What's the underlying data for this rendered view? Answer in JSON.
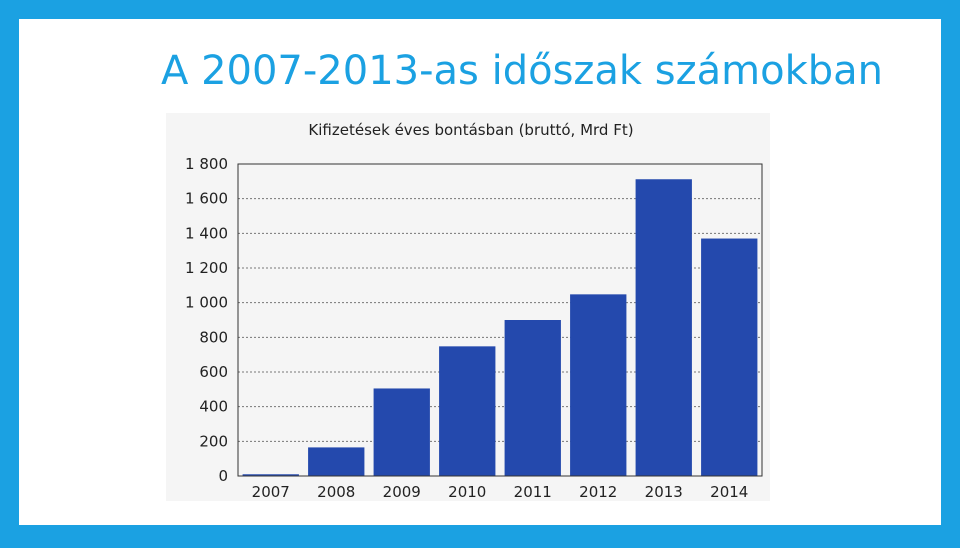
{
  "slide": {
    "title": "A 2007-2013-as időszak számokban"
  },
  "colors": {
    "frame": "#1ba1e2",
    "title": "#1ba1e2",
    "bar": "#2449ad"
  },
  "chart_data": {
    "type": "bar",
    "title": "Kifizetések éves bontásban (bruttó, Mrd Ft)",
    "categories": [
      "2007",
      "2008",
      "2009",
      "2010",
      "2011",
      "2012",
      "2013",
      "2014"
    ],
    "values": [
      10,
      165,
      505,
      748,
      900,
      1048,
      1712,
      1370
    ],
    "ylim": [
      0,
      1800
    ],
    "yticks": [
      0,
      200,
      400,
      600,
      800,
      1000,
      1200,
      1400,
      1600,
      1800
    ],
    "ytick_labels": [
      "0",
      "200",
      "400",
      "600",
      "800",
      "1 000",
      "1 200",
      "1 400",
      "1 600",
      "1 800"
    ],
    "xlabel": "",
    "ylabel": "",
    "grid": true,
    "legend": "none"
  }
}
